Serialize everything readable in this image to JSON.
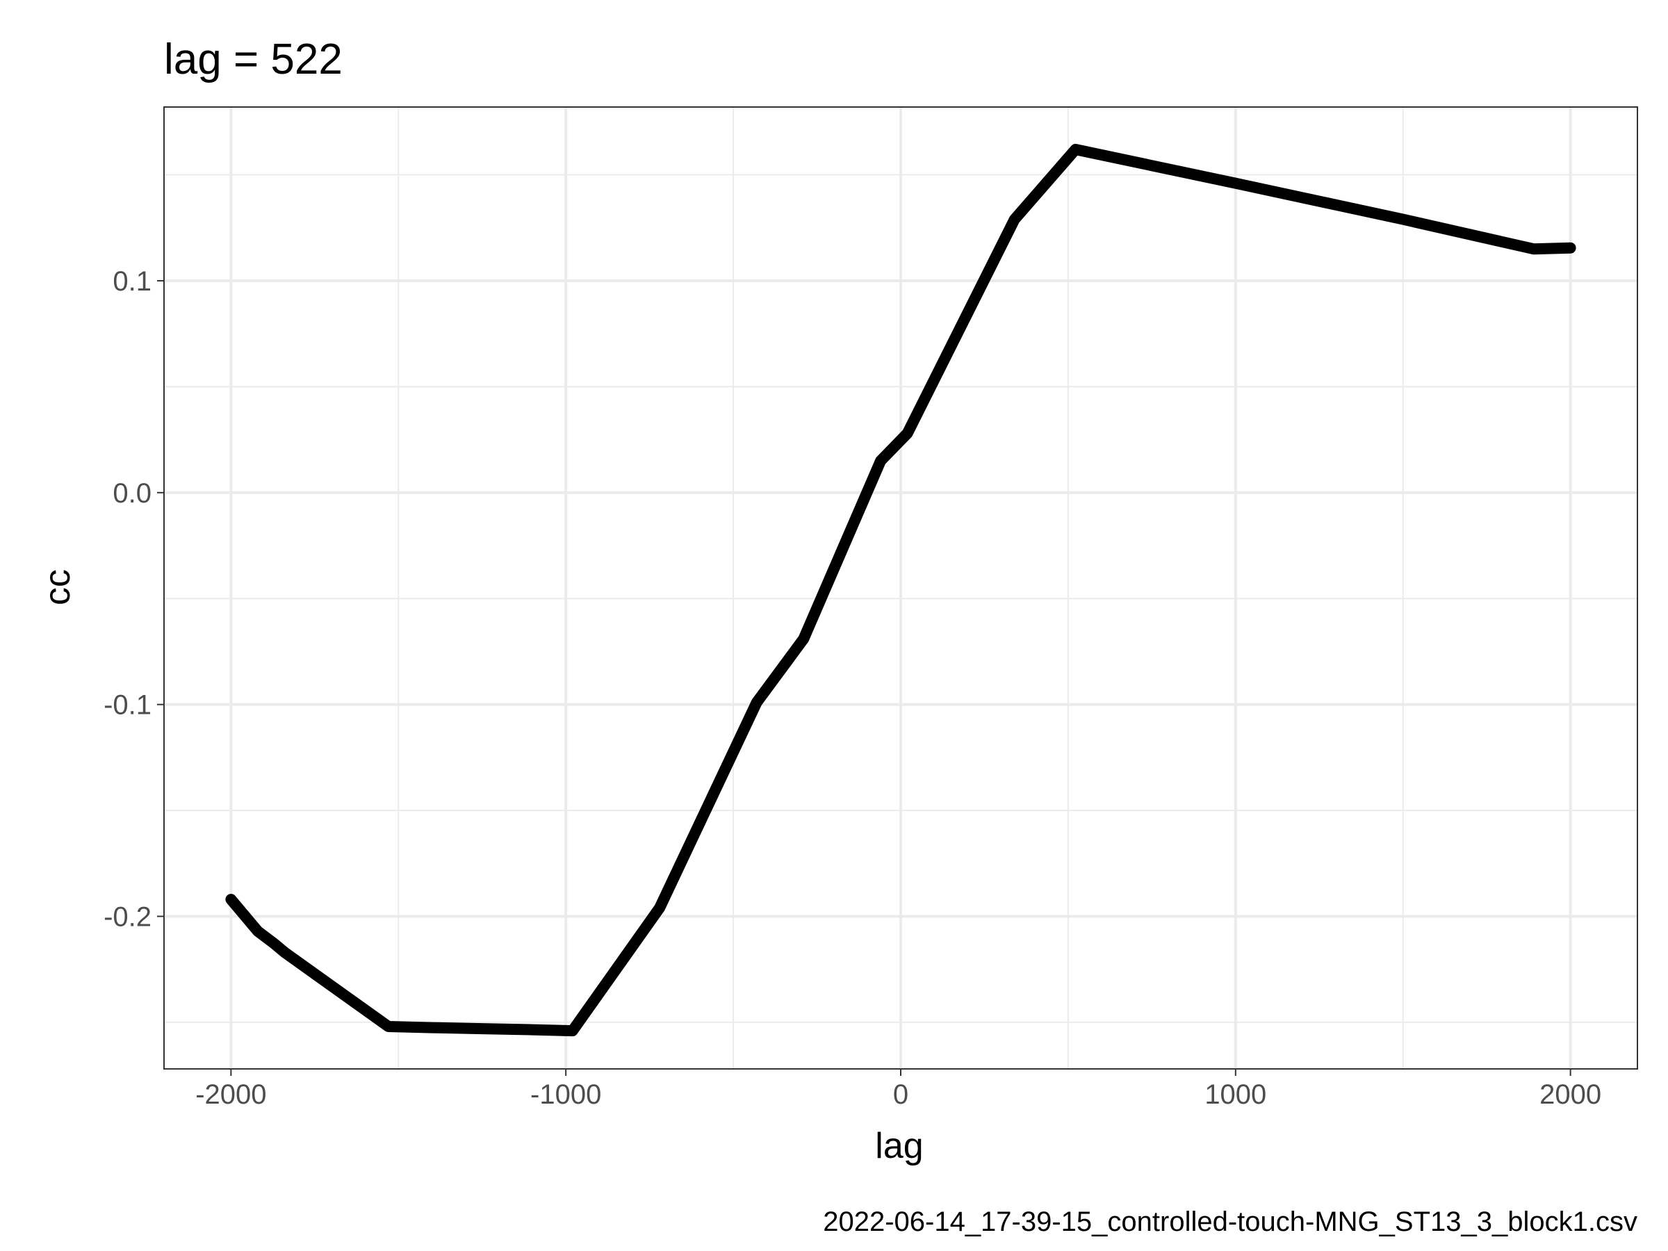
{
  "chart_data": {
    "type": "line",
    "title": "lag = 522",
    "xlabel": "lag",
    "ylabel": "cc",
    "caption": "2022-06-14_17-39-15_controlled-touch-MNG_ST13_3_block1.csv",
    "xlim": [
      -2200,
      2200
    ],
    "ylim": [
      -0.272,
      0.182
    ],
    "x_ticks": [
      -2000,
      -1000,
      0,
      1000,
      2000
    ],
    "x_tick_labels": [
      "-2000",
      "-1000",
      "0",
      "1000",
      "2000"
    ],
    "y_ticks": [
      -0.2,
      -0.1,
      0.0,
      0.1
    ],
    "y_tick_labels": [
      "-0.2",
      "-0.1",
      "0.0",
      "0.1"
    ],
    "grid": true,
    "line_color": "#000000",
    "series": [
      {
        "x": [
          -2000,
          -1920,
          -1870,
          -1840,
          -1530,
          -1400,
          -1250,
          -1100,
          -980,
          -720,
          -430,
          -290,
          -60,
          20,
          340,
          522,
          1000,
          1500,
          1890,
          2000
        ],
        "y": [
          -0.192,
          -0.207,
          -0.213,
          -0.217,
          -0.252,
          -0.2525,
          -0.253,
          -0.2535,
          -0.254,
          -0.196,
          -0.099,
          -0.069,
          0.015,
          0.028,
          0.129,
          0.162,
          0.146,
          0.129,
          0.115,
          0.1155
        ]
      }
    ]
  }
}
